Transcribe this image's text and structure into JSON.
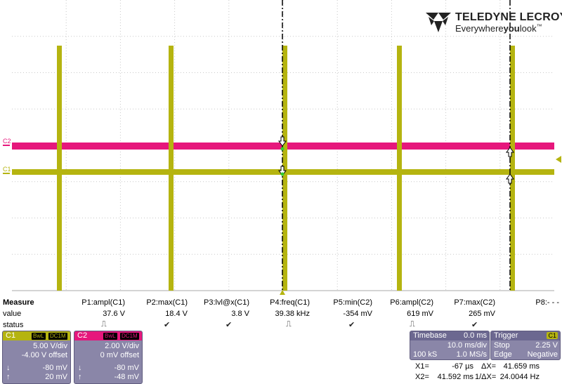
{
  "brand": {
    "name": "TELEDYNE LECROY",
    "tagline_a": "Everywhere",
    "tagline_b": "you",
    "tagline_c": "look",
    "tm": "™"
  },
  "channel_markers": {
    "c2": "C2",
    "c1": "C1"
  },
  "colors": {
    "c1": "#b5b410",
    "c2": "#e6177c",
    "grid": "#c8c8c8",
    "cursor": "#000000",
    "panel": "#8a86a8"
  },
  "measure": {
    "header": "Measure",
    "row_value": "value",
    "row_status": "status",
    "params": [
      {
        "name": "P1:ampl(C1)",
        "value": "37.6 V",
        "status": "pulse"
      },
      {
        "name": "P2:max(C1)",
        "value": "18.4 V",
        "status": "check"
      },
      {
        "name": "P3:lvl@x(C1)",
        "value": "3.8 V",
        "status": "check"
      },
      {
        "name": "P4:freq(C1)",
        "value": "39.38 kHz",
        "status": "pulse"
      },
      {
        "name": "P5:min(C2)",
        "value": "-354 mV",
        "status": "check"
      },
      {
        "name": "P6:ampl(C2)",
        "value": "619 mV",
        "status": "pulse"
      },
      {
        "name": "P7:max(C2)",
        "value": "265 mV",
        "status": "check"
      },
      {
        "name": "P8:- - -",
        "value": "",
        "status": ""
      }
    ],
    "status_glyphs": {
      "pulse": "⎍",
      "check": "✔"
    }
  },
  "channels": [
    {
      "name": "C1",
      "bwl": "BwL",
      "coupling": "DC1M",
      "vdiv": "5.00 V/div",
      "offset": "-4.00 V offset",
      "cursor_down": "-80 mV",
      "cursor_up": "20 mV",
      "color": "#b5b410"
    },
    {
      "name": "C2",
      "bwl": "BwL",
      "coupling": "DC1M",
      "vdiv": "2.00 V/div",
      "offset": "0 mV offset",
      "cursor_down": "-80 mV",
      "cursor_up": "-48 mV",
      "color": "#e6177c"
    }
  ],
  "cursor_arrows": {
    "down": "↓",
    "up": "↑"
  },
  "timebase": {
    "label": "Timebase",
    "delay": "0.0 ms",
    "tdiv": "10.0 ms/div",
    "samples": "100 kS",
    "rate": "1.0 MS/s"
  },
  "trigger": {
    "label": "Trigger",
    "source": "C1",
    "mode": "Stop",
    "level": "2.25 V",
    "type": "Edge",
    "slope": "Negative"
  },
  "cursors": {
    "x1_label": "X1=",
    "x1": "-67 µs",
    "dx_label": "ΔX=",
    "dx": "41.659 ms",
    "x2_label": "X2=",
    "x2": "41.592 ms",
    "inv_label": "1/ΔX=",
    "inv": "24.0044 Hz"
  }
}
